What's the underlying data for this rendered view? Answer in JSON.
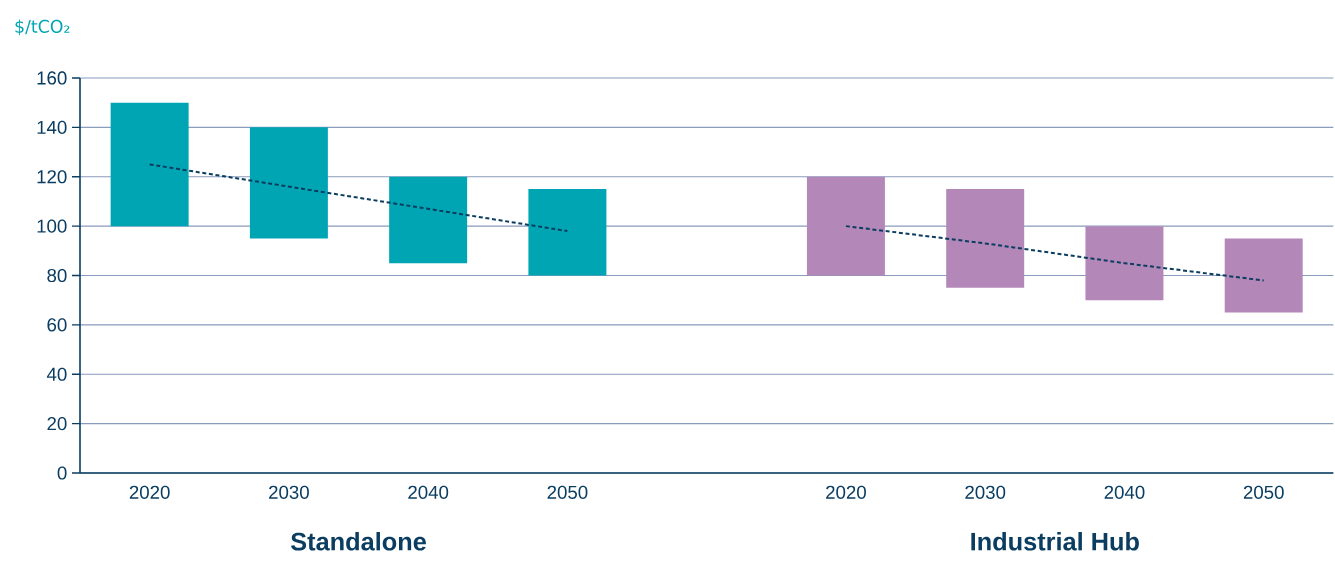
{
  "chart_data": {
    "type": "bar",
    "ylabel": "$/tCO₂",
    "categories": [
      "2020",
      "2030",
      "2040",
      "2050",
      null,
      "2020",
      "2030",
      "2040",
      "2050"
    ],
    "series": [
      {
        "values": [
          50,
          45,
          35,
          35,
          null,
          40,
          40,
          30,
          30
        ],
        "base": [
          100,
          95,
          85,
          80,
          null,
          80,
          75,
          70,
          65
        ],
        "colors": [
          "#00a5b3",
          "#00a5b3",
          "#00a5b3",
          "#00a5b3",
          null,
          "#b388b8",
          "#b388b8",
          "#b388b8",
          "#b388b8"
        ]
      },
      {
        "type": "line",
        "color": "#0b3d61",
        "line_style": "dotted",
        "values": [
          125,
          116,
          107,
          98,
          null,
          null,
          null,
          null,
          null
        ]
      },
      {
        "type": "line",
        "color": "#0b3d61",
        "line_style": "dotted",
        "values": [
          null,
          null,
          null,
          null,
          null,
          100,
          93,
          85,
          78
        ]
      }
    ],
    "ylim": [
      0,
      160
    ],
    "yticks": [
      0,
      20,
      40,
      60,
      80,
      100,
      120,
      140,
      160
    ],
    "grid": "y",
    "annotations": [
      "Standalone",
      "Industrial Hub"
    ]
  }
}
